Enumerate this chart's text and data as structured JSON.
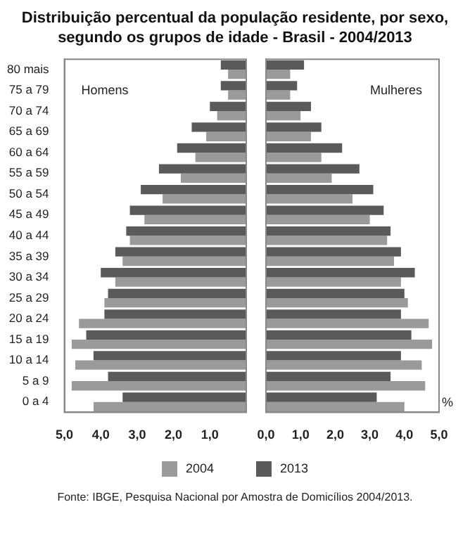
{
  "chart_data": [
    {
      "type": "bar",
      "orientation": "horizontal",
      "title": "Distribuição percentual da população residente, por sexo, segundo os grupos de idade - Brasil - 2004/2013",
      "categories": [
        "80 mais",
        "75 a 79",
        "70 a 74",
        "65 a 69",
        "60 a 64",
        "55 a 59",
        "50 a 54",
        "45 a 49",
        "40 a 44",
        "35 a 39",
        "30 a 34",
        "25 a 29",
        "20 a 24",
        "15 a 19",
        "10 a 14",
        "5 a 9",
        "0 a 4"
      ],
      "series": [
        {
          "color": "#5a5a5a",
          "values": [
            0.7,
            0.7,
            1.0,
            1.5,
            1.9,
            2.4,
            2.9,
            3.2,
            3.3,
            3.6,
            4.0,
            3.8,
            3.9,
            4.4,
            4.2,
            3.8,
            3.4
          ]
        },
        {
          "color": "#9a9a9a",
          "values": [
            0.5,
            0.5,
            0.8,
            1.1,
            1.4,
            1.8,
            2.3,
            2.8,
            3.2,
            3.4,
            3.6,
            3.9,
            4.6,
            4.8,
            4.7,
            4.8,
            4.2
          ]
        }
      ],
      "xlim": [
        5,
        0
      ],
      "xticks": [
        {
          "value": 5,
          "label": "5,0"
        },
        {
          "value": 4,
          "label": "4,0"
        },
        {
          "value": 3,
          "label": "3,0"
        },
        {
          "value": 2,
          "label": "2,0"
        },
        {
          "value": 1,
          "label": "1,0"
        }
      ],
      "annotations": [
        "Homens"
      ]
    },
    {
      "type": "bar",
      "orientation": "horizontal",
      "categories": [
        null,
        null,
        null,
        null,
        null,
        null,
        null,
        null,
        null,
        null,
        null,
        null,
        null,
        null,
        null,
        null,
        null
      ],
      "series": [
        {
          "name": "2013",
          "color": "#5a5a5a",
          "values": [
            1.1,
            0.9,
            1.3,
            1.6,
            2.2,
            2.7,
            3.1,
            3.4,
            3.6,
            3.9,
            4.3,
            4.0,
            3.9,
            4.2,
            3.9,
            3.6,
            3.2
          ]
        },
        {
          "name": "2004",
          "color": "#9a9a9a",
          "values": [
            0.7,
            0.7,
            1.0,
            1.3,
            1.6,
            1.9,
            2.5,
            3.0,
            3.5,
            3.7,
            3.9,
            4.1,
            4.7,
            4.8,
            4.5,
            4.6,
            4.0
          ]
        }
      ],
      "xlim": [
        0,
        5
      ],
      "xticks": [
        {
          "value": 0,
          "label": "0,0"
        },
        {
          "value": 1,
          "label": "1,0"
        },
        {
          "value": 2,
          "label": "2,0"
        },
        {
          "value": 3,
          "label": "3,0"
        },
        {
          "value": 4,
          "label": "4,0"
        },
        {
          "value": 5,
          "label": "5,0"
        }
      ],
      "legend": "bottom",
      "annotations": [
        "Mulheres",
        "%",
        "Fonte: IBGE, Pesquisa Nacional por Amostra de Domicílios 2004/2013."
      ]
    }
  ]
}
